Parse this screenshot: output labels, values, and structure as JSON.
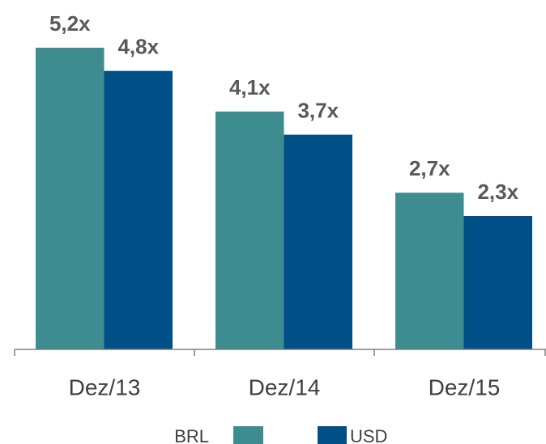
{
  "chart_data": {
    "type": "bar",
    "categories": [
      "Dez/13",
      "Dez/14",
      "Dez/15"
    ],
    "series": [
      {
        "name": "BRL",
        "color": "#3d8c8f",
        "values": [
          5.2,
          4.1,
          2.7
        ],
        "value_labels": [
          "5,2x",
          "4,1x",
          "2,7x"
        ]
      },
      {
        "name": "USD",
        "color": "#004f86",
        "values": [
          4.8,
          3.7,
          2.3
        ],
        "value_labels": [
          "4,8x",
          "3,7x",
          "2,3x"
        ]
      }
    ]
  }
}
